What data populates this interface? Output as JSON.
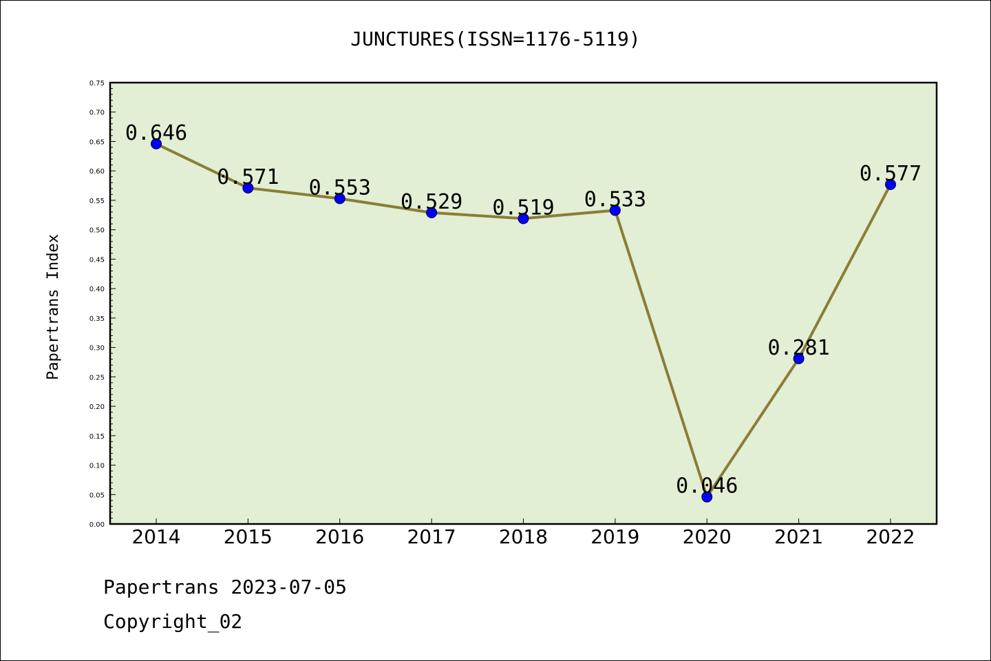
{
  "chart_data": {
    "type": "line",
    "title": "JUNCTURES(ISSN=1176-5119)",
    "xlabel": "",
    "ylabel": "Papertrans Index",
    "categories": [
      "2014",
      "2015",
      "2016",
      "2017",
      "2018",
      "2019",
      "2020",
      "2021",
      "2022"
    ],
    "series": [
      {
        "values": [
          0.646,
          0.571,
          0.553,
          0.529,
          0.519,
          0.533,
          0.046,
          0.281,
          0.577
        ],
        "line_color": "#8b7d36",
        "marker_color": "#0000ff"
      }
    ],
    "data_labels": [
      "0.646",
      "0.571",
      "0.553",
      "0.529",
      "0.519",
      "0.533",
      "0.046",
      "0.281",
      "0.577"
    ],
    "ylim": [
      0,
      0.75
    ],
    "yticks": [
      "0.00",
      "0.05",
      "0.10",
      "0.15",
      "0.20",
      "0.25",
      "0.30",
      "0.35",
      "0.40",
      "0.45",
      "0.50",
      "0.55",
      "0.60",
      "0.65",
      "0.70",
      "0.75"
    ],
    "ytick_values": [
      0,
      0.05,
      0.1,
      0.15,
      0.2,
      0.25,
      0.3,
      0.35,
      0.4,
      0.45,
      0.5,
      0.55,
      0.6,
      0.65,
      0.7,
      0.75
    ],
    "plot_background": "#e2efd4",
    "grid": false,
    "legend": "none"
  },
  "footer": {
    "line1": "Papertrans 2023-07-05",
    "line2": "Copyright_02"
  }
}
